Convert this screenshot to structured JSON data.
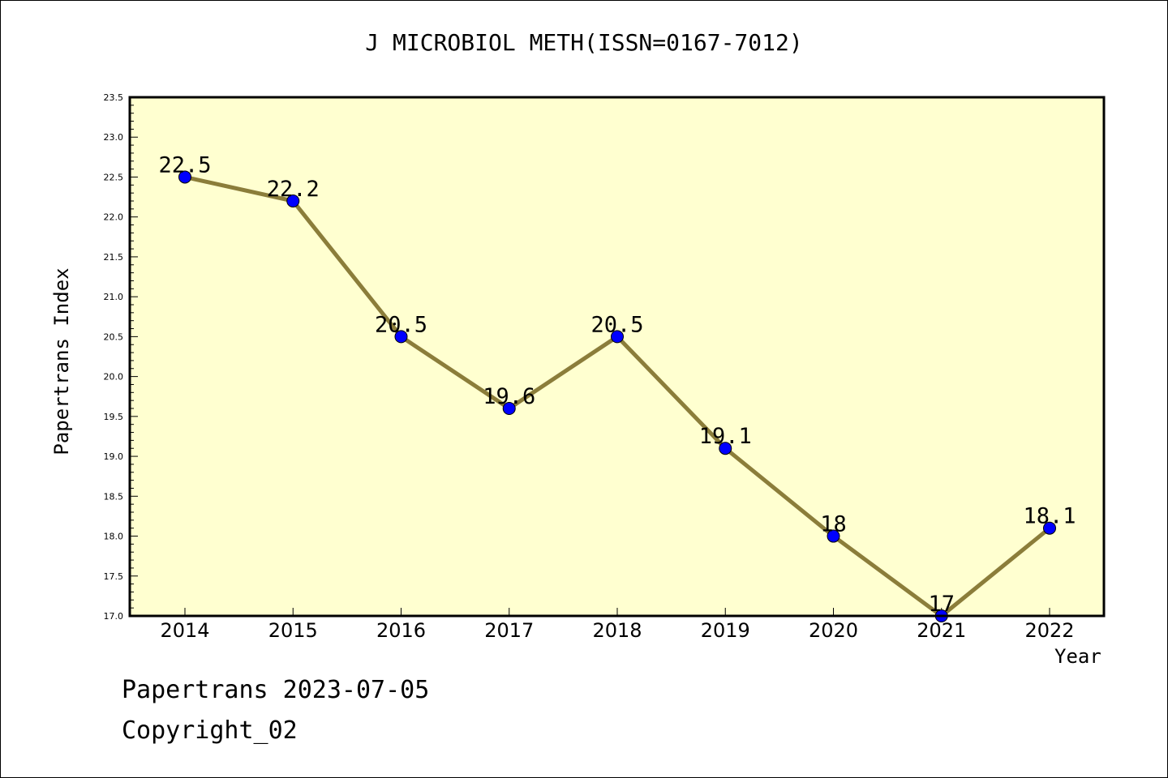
{
  "chart_data": {
    "type": "line",
    "title": "J MICROBIOL METH(ISSN=0167-7012)",
    "xlabel": "Year",
    "ylabel": "Papertrans Index",
    "categories": [
      "2014",
      "2015",
      "2016",
      "2017",
      "2018",
      "2019",
      "2020",
      "2021",
      "2022"
    ],
    "series": [
      {
        "values": [
          22.5,
          22.2,
          20.5,
          19.6,
          20.5,
          19.1,
          18.0,
          17.0,
          18.1
        ],
        "data_labels": [
          "22.5",
          "22.2",
          "20.5",
          "19.6",
          "20.5",
          "19.1",
          "18",
          "17",
          "18.1"
        ]
      }
    ],
    "ylim": [
      17.0,
      23.5
    ],
    "yticks": [
      "17.0",
      "17.5",
      "18.0",
      "18.5",
      "19.0",
      "19.5",
      "20.0",
      "20.5",
      "21.0",
      "21.5",
      "22.0",
      "22.5",
      "23.0",
      "23.5"
    ],
    "grid": false,
    "colors": {
      "plot_background": "#ffffd0",
      "line": "#8b7d3a",
      "marker": "#0000ff"
    }
  },
  "footer": {
    "line1": "Papertrans 2023-07-05",
    "line2": "Copyright_02"
  }
}
